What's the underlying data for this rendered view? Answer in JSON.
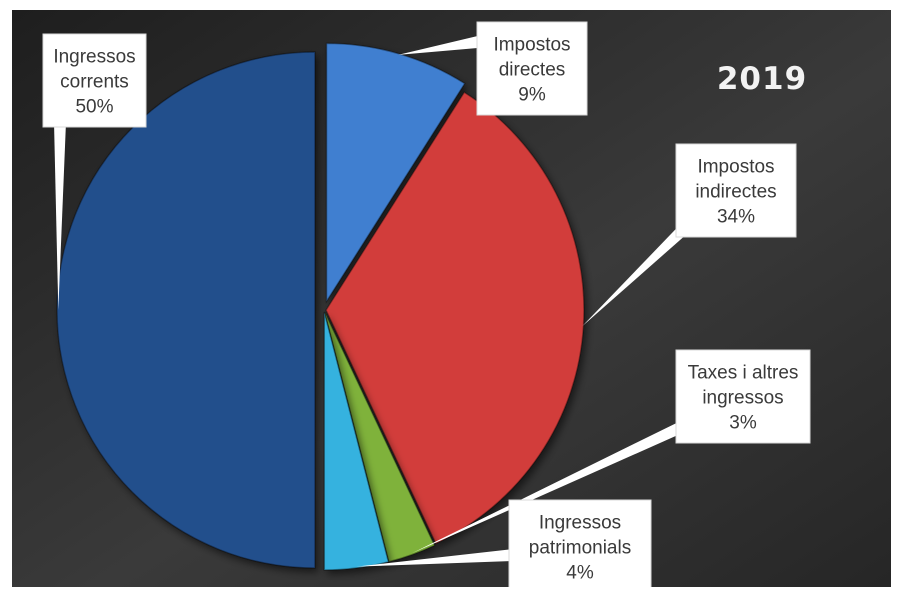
{
  "chart_data": {
    "type": "pie",
    "title": "2019",
    "slices": [
      {
        "name": "Impostos directes",
        "label_lines": [
          "Impostos",
          "directes"
        ],
        "value": 9,
        "value_label": "9%",
        "color": "#3f7fd0"
      },
      {
        "name": "Impostos indirectes",
        "label_lines": [
          "Impostos",
          "indirectes"
        ],
        "value": 34,
        "value_label": "34%",
        "color": "#d23d3a"
      },
      {
        "name": "Taxes i altres ingressos",
        "label_lines": [
          "Taxes i altres",
          "ingressos"
        ],
        "value": 3,
        "value_label": "3%",
        "color": "#7fb23a"
      },
      {
        "name": "Ingressos patrimonials",
        "label_lines": [
          "Ingressos",
          "patrimonials"
        ],
        "value": 4,
        "value_label": "4%",
        "color": "#35b2df"
      },
      {
        "name": "Ingressos corrents",
        "label_lines": [
          "Ingressos",
          "corrents"
        ],
        "value": 50,
        "value_label": "50%",
        "color": "#234f8c"
      }
    ],
    "legend": "none",
    "background_color": "#2b2b2b"
  }
}
